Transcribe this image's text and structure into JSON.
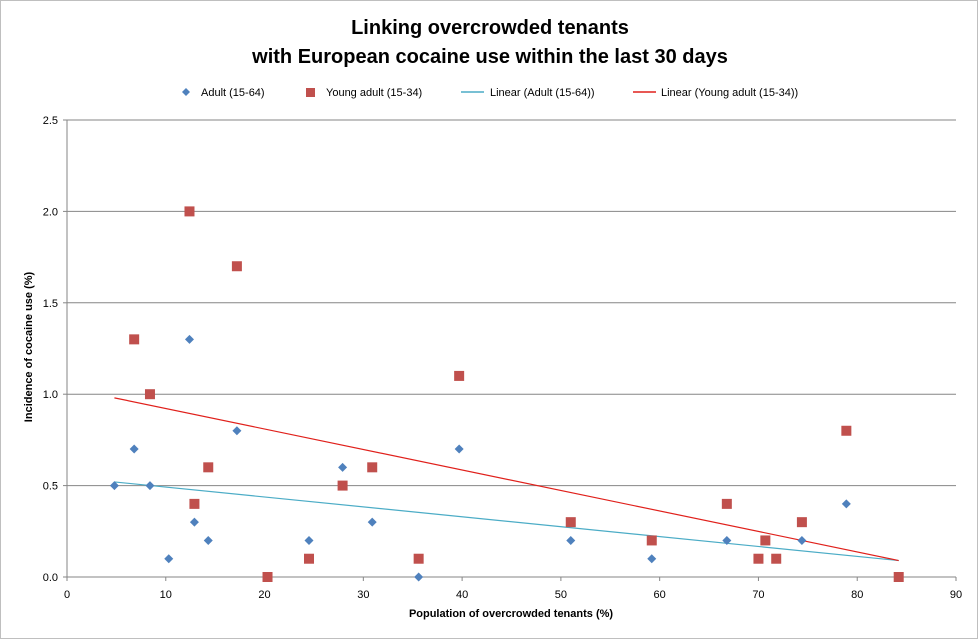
{
  "chart_data": {
    "type": "scatter",
    "title": [
      "Linking overcrowded tenants",
      "with European cocaine use within the last 30 days"
    ],
    "xlabel": "Population of overcrowded tenants (%)",
    "ylabel": "Incidence of cocaine  use (%)",
    "xlim": [
      0,
      90
    ],
    "ylim": [
      0,
      2.5
    ],
    "xticks": [
      "0",
      "10",
      "20",
      "30",
      "40",
      "50",
      "60",
      "70",
      "80",
      "90"
    ],
    "yticks": [
      "0.0",
      "0.5",
      "1.0",
      "1.5",
      "2.0",
      "2.5"
    ],
    "grid": "horizontal",
    "legend_position": "top",
    "legend": [
      "Adult (15-64)",
      "Young adult (15-34)",
      "Linear (Adult (15-64))",
      "Linear (Young adult (15-34))"
    ],
    "series": [
      {
        "name": "Adult (15-64)",
        "marker": "diamond",
        "color": "#4f81bd",
        "points": [
          [
            4.8,
            0.5
          ],
          [
            6.8,
            0.7
          ],
          [
            8.4,
            0.5
          ],
          [
            10.3,
            0.1
          ],
          [
            12.4,
            1.3
          ],
          [
            12.9,
            0.3
          ],
          [
            14.3,
            0.2
          ],
          [
            17.2,
            0.8
          ],
          [
            24.5,
            0.2
          ],
          [
            27.9,
            0.6
          ],
          [
            30.9,
            0.3
          ],
          [
            35.6,
            0.0
          ],
          [
            39.7,
            0.7
          ],
          [
            51.0,
            0.2
          ],
          [
            59.2,
            0.1
          ],
          [
            66.8,
            0.2
          ],
          [
            74.4,
            0.2
          ],
          [
            78.9,
            0.4
          ]
        ]
      },
      {
        "name": "Young adult (15-34)",
        "marker": "square",
        "color": "#c0504d",
        "points": [
          [
            6.8,
            1.3
          ],
          [
            8.4,
            1.0
          ],
          [
            12.4,
            2.0
          ],
          [
            12.9,
            0.4
          ],
          [
            14.3,
            0.6
          ],
          [
            17.2,
            1.7
          ],
          [
            20.3,
            0.0
          ],
          [
            24.5,
            0.1
          ],
          [
            27.9,
            0.5
          ],
          [
            30.9,
            0.6
          ],
          [
            35.6,
            0.1
          ],
          [
            39.7,
            1.1
          ],
          [
            51.0,
            0.3
          ],
          [
            59.2,
            0.2
          ],
          [
            66.8,
            0.4
          ],
          [
            70.0,
            0.1
          ],
          [
            70.7,
            0.2
          ],
          [
            71.8,
            0.1
          ],
          [
            74.4,
            0.3
          ],
          [
            78.9,
            0.8
          ],
          [
            84.2,
            0.0
          ]
        ]
      },
      {
        "name": "Linear (Adult (15-64))",
        "type": "line",
        "color": "#4bacc6",
        "points": [
          [
            4.8,
            0.52
          ],
          [
            84.2,
            0.09
          ]
        ]
      },
      {
        "name": "Linear (Young adult (15-34))",
        "type": "line",
        "color": "#e0201b",
        "points": [
          [
            4.8,
            0.98
          ],
          [
            84.2,
            0.09
          ]
        ]
      }
    ]
  }
}
